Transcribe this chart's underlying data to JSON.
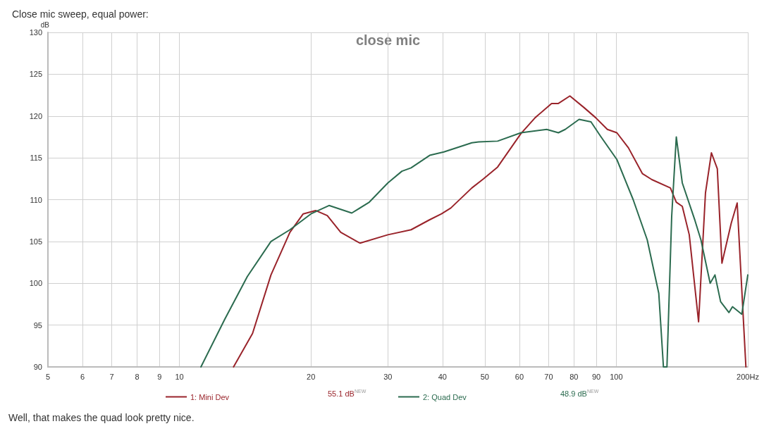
{
  "chart_data": {
    "type": "line",
    "title": "Close mic sweep, equal power:",
    "subtitle": "close mic",
    "ylabel": "dB",
    "log": "x",
    "xlim": [
      5,
      200
    ],
    "xticks": [
      5,
      6,
      7,
      8,
      9,
      10,
      20,
      30,
      40,
      50,
      60,
      70,
      80,
      90,
      100,
      {
        "value": 200,
        "label": "200Hz"
      }
    ],
    "ylim": [
      90,
      130
    ],
    "yticks": [
      90,
      95,
      100,
      105,
      110,
      115,
      120,
      125,
      130
    ],
    "grid": true,
    "legend": "bottom",
    "annotations": [
      "55.1 dB$^{NEW}$",
      "48.9 dB$^{NEW}$",
      "Well, that makes the quad look pretty nice."
    ],
    "series": [
      {
        "name": "1: Mini Dev",
        "color": "#99232a",
        "x": [
          13.3,
          14.7,
          16.2,
          17.9,
          19.2,
          20.5,
          21.8,
          23.4,
          25.9,
          30.0,
          33.9,
          37.4,
          39.8,
          41.8,
          46.7,
          49.7,
          53.5,
          60.5,
          65.2,
          71.1,
          73.7,
          78.3,
          84.4,
          89.7,
          95.4,
          100.3,
          106.6,
          114.8,
          120.6,
          133.0,
          137.2,
          141.6,
          146.9,
          154.3,
          160.0,
          165.1,
          170.3,
          174.5,
          183.3,
          189.1,
          198.0
        ],
        "values": [
          90,
          94.0,
          101.0,
          106.1,
          108.3,
          108.7,
          108.1,
          106.1,
          104.8,
          105.8,
          106.4,
          107.6,
          108.3,
          109.0,
          111.4,
          112.5,
          113.9,
          117.9,
          119.8,
          121.5,
          121.5,
          122.4,
          121.0,
          119.8,
          118.4,
          118.0,
          116.2,
          113.1,
          112.4,
          111.4,
          109.7,
          109.2,
          105.8,
          95.4,
          110.8,
          115.6,
          113.7,
          102.4,
          107.2,
          109.6,
          90
        ]
      },
      {
        "name": "2: Quad Dev",
        "color": "#2b6b4f",
        "x": [
          11.2,
          12.7,
          14.3,
          16.2,
          17.9,
          20.0,
          22.0,
          24.8,
          27.2,
          30.0,
          32.3,
          33.9,
          37.4,
          40.3,
          46.7,
          48.4,
          53.5,
          60.5,
          69.3,
          73.7,
          76.4,
          82.2,
          87.5,
          92.0,
          100.3,
          109.3,
          117.7,
          125.1,
          128.2,
          130.6,
          133.9,
          137.2,
          141.6,
          151.4,
          156.2,
          164.0,
          168.2,
          173.3,
          181.1,
          184.5,
          193.8,
          200.0
        ],
        "values": [
          90,
          95.7,
          100.8,
          105.0,
          106.4,
          108.3,
          109.3,
          108.4,
          109.7,
          112.0,
          113.4,
          113.8,
          115.3,
          115.7,
          116.8,
          116.9,
          117.0,
          118.0,
          118.4,
          118.0,
          118.4,
          119.6,
          119.3,
          117.6,
          114.8,
          110.0,
          105.2,
          98.8,
          90,
          90,
          108.0,
          117.5,
          112.0,
          107.5,
          105.2,
          100.0,
          101.0,
          97.8,
          96.5,
          97.2,
          96.3,
          101.0
        ]
      }
    ]
  }
}
